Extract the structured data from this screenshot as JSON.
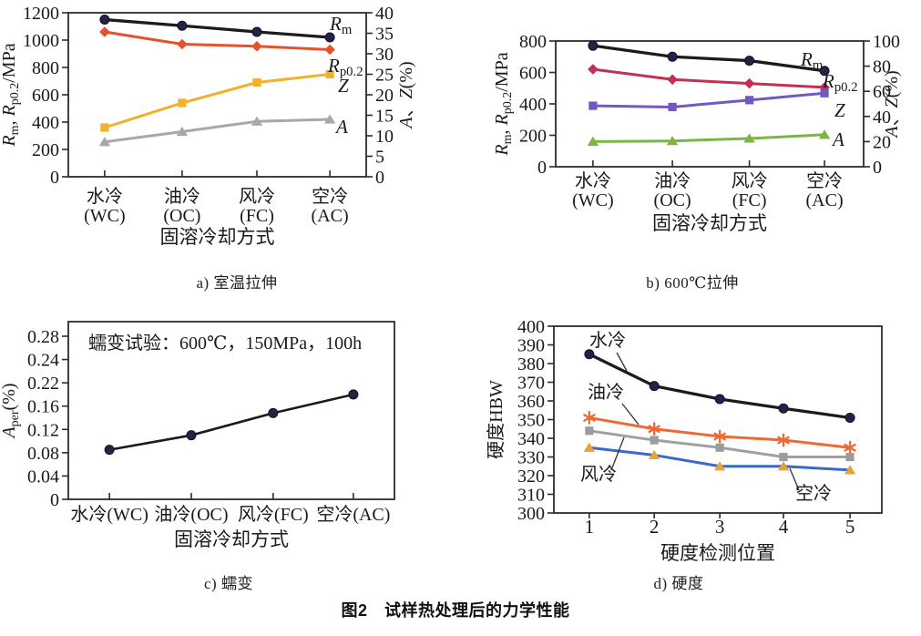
{
  "figure": {
    "main_caption": "图2　试样热处理后的力学性能",
    "captions": {
      "a": "a) 室温拉伸",
      "b": "b) 600℃拉伸",
      "c": "c) 蠕变",
      "d": "d) 硬度"
    }
  },
  "colors": {
    "axis": "#2b2b2b",
    "black_line": "#1b1b1b",
    "navy_marker": "#23234a",
    "orange_red": "#e6522b",
    "amber": "#f0b12b",
    "gray": "#a8a8a8",
    "crimson": "#c23052",
    "purple": "#7258c0",
    "green": "#7bb544",
    "orange": "#ee6a35",
    "blue": "#3a6ac8",
    "yellow_orange": "#e8a336"
  },
  "chart_data": [
    {
      "id": "a",
      "type": "line",
      "caption": "a) 室温拉伸",
      "x_categories": [
        [
          "水冷",
          "(WC)"
        ],
        [
          "油冷",
          "(OC)"
        ],
        [
          "风冷",
          "(FC)"
        ],
        [
          "空冷",
          "(AC)"
        ]
      ],
      "xlabel": "固溶冷却方式",
      "left_axis": {
        "min": 0,
        "max": 1200,
        "tick_step": 200,
        "tick_labels": [
          "0",
          "200",
          "400",
          "600",
          "800",
          "1000",
          "1200"
        ],
        "label": [
          {
            "t": "R",
            "i": 1
          },
          {
            "t": "m",
            "s": 1
          },
          {
            "t": ", "
          },
          {
            "t": "R",
            "i": 1
          },
          {
            "t": "p0.2",
            "s": 1
          },
          {
            "t": "/MPa"
          }
        ]
      },
      "right_axis": {
        "min": 0,
        "max": 40,
        "tick_step": 5,
        "tick_labels": [
          "0",
          "5",
          "10",
          "15",
          "20",
          "25",
          "30",
          "35",
          "40"
        ],
        "label": [
          {
            "t": "A",
            "i": 1
          },
          {
            "t": "、"
          },
          {
            "t": "Z",
            "i": 1
          },
          {
            "t": "(%)"
          }
        ]
      },
      "series": [
        {
          "key": "rm",
          "label": [
            {
              "t": "R",
              "i": 1
            },
            {
              "t": "m",
              "s": 1
            }
          ],
          "axis": "left",
          "color": "#1b1b1b",
          "marker": "circle",
          "marker_color": "#23234a",
          "values": [
            1150,
            1105,
            1060,
            1020
          ]
        },
        {
          "key": "rp02",
          "label": [
            {
              "t": "R",
              "i": 1
            },
            {
              "t": "p0.2",
              "s": 1
            }
          ],
          "axis": "left",
          "color": "#e6522b",
          "marker": "diamond",
          "marker_color": "#e6522b",
          "values": [
            1060,
            970,
            955,
            930
          ]
        },
        {
          "key": "z",
          "label": [
            {
              "t": "Z",
              "i": 1
            }
          ],
          "axis": "right",
          "color": "#f0b12b",
          "marker": "square",
          "marker_color": "#f0b12b",
          "values": [
            12,
            18,
            23,
            25
          ]
        },
        {
          "key": "a",
          "label": [
            {
              "t": "A",
              "i": 1
            }
          ],
          "axis": "right",
          "color": "#a8a8a8",
          "marker": "triangle",
          "marker_color": "#a8a8a8",
          "values": [
            8.5,
            11,
            13.5,
            14
          ]
        }
      ]
    },
    {
      "id": "b",
      "type": "line",
      "caption": "b) 600℃拉伸",
      "x_categories": [
        [
          "水冷",
          "(WC)"
        ],
        [
          "油冷",
          "(OC)"
        ],
        [
          "风冷",
          "(FC)"
        ],
        [
          "空冷",
          "(AC)"
        ]
      ],
      "xlabel": "固溶冷却方式",
      "left_axis": {
        "min": 0,
        "max": 800,
        "tick_step": 200,
        "tick_labels": [
          "0",
          "200",
          "400",
          "600",
          "800"
        ],
        "label": [
          {
            "t": "R",
            "i": 1
          },
          {
            "t": "m",
            "s": 1
          },
          {
            "t": ", "
          },
          {
            "t": "R",
            "i": 1
          },
          {
            "t": "p0.2",
            "s": 1
          },
          {
            "t": "/MPa"
          }
        ]
      },
      "right_axis": {
        "min": 0,
        "max": 100,
        "tick_step": 20,
        "tick_labels": [
          "0",
          "20",
          "40",
          "60",
          "80",
          "100"
        ],
        "label": [
          {
            "t": "A",
            "i": 1
          },
          {
            "t": "、"
          },
          {
            "t": "Z",
            "i": 1
          },
          {
            "t": "(%)"
          }
        ]
      },
      "series": [
        {
          "key": "rm",
          "label": [
            {
              "t": "R",
              "i": 1
            },
            {
              "t": "m",
              "s": 1
            }
          ],
          "axis": "left",
          "color": "#1b1b1b",
          "marker": "circle",
          "marker_color": "#23234a",
          "values": [
            770,
            700,
            675,
            610
          ]
        },
        {
          "key": "rp02",
          "label": [
            {
              "t": "R",
              "i": 1
            },
            {
              "t": "p0.2",
              "s": 1
            }
          ],
          "axis": "left",
          "color": "#c23052",
          "marker": "diamond",
          "marker_color": "#c23052",
          "values": [
            620,
            555,
            530,
            505
          ]
        },
        {
          "key": "z",
          "label": [
            {
              "t": "Z",
              "i": 1
            }
          ],
          "axis": "right",
          "color": "#7258c0",
          "marker": "square",
          "marker_color": "#7258c0",
          "values": [
            48.5,
            47.5,
            53,
            58.5
          ]
        },
        {
          "key": "a",
          "label": [
            {
              "t": "A",
              "i": 1
            }
          ],
          "axis": "right",
          "color": "#7bb544",
          "marker": "triangle",
          "marker_color": "#7bb544",
          "values": [
            20,
            20.5,
            22.5,
            25.5
          ]
        }
      ]
    },
    {
      "id": "c",
      "type": "line",
      "caption": "c) 蠕变",
      "annotation": "蠕变试验：600℃，150MPa，100h",
      "x_categories": [
        [
          "水冷(WC)"
        ],
        [
          "油冷(OC)"
        ],
        [
          "风冷(FC)"
        ],
        [
          "空冷(AC)"
        ]
      ],
      "xlabel": "固溶冷却方式",
      "left_axis": {
        "tick_values": [
          0,
          0.04,
          0.08,
          0.12,
          0.16,
          0.22,
          0.24,
          0.28
        ],
        "tick_labels": [
          "0",
          "0.04",
          "0.08",
          "0.12",
          "0.16",
          "0.22",
          "0.24",
          "0.28"
        ],
        "label": [
          {
            "t": "A",
            "i": 1
          },
          {
            "t": "per",
            "s": 1
          },
          {
            "t": "(%)"
          }
        ]
      },
      "series": [
        {
          "key": "aper",
          "axis": "left",
          "color": "#1b1b1b",
          "marker": "circle",
          "marker_color": "#23234a",
          "values": [
            0.085,
            0.11,
            0.148,
            0.19
          ]
        }
      ]
    },
    {
      "id": "d",
      "type": "line",
      "caption": "d) 硬度",
      "x_tick_labels": [
        "1",
        "2",
        "3",
        "4",
        "5"
      ],
      "xlabel": "硬度检测位置",
      "left_axis": {
        "min": 300,
        "max": 400,
        "tick_step": 10,
        "tick_labels": [
          "300",
          "310",
          "320",
          "330",
          "340",
          "350",
          "360",
          "370",
          "380",
          "390",
          "400"
        ],
        "label": [
          {
            "t": "硬度HBW"
          }
        ]
      },
      "series": [
        {
          "key": "water",
          "name": "水冷",
          "axis": "left",
          "color": "#1b1b1b",
          "marker": "circle",
          "marker_color": "#23234a",
          "values": [
            385,
            368,
            361,
            356,
            351
          ]
        },
        {
          "key": "oil",
          "name": "油冷",
          "axis": "left",
          "color": "#ee6a35",
          "marker": "asterisk",
          "marker_color": "#ee6a35",
          "values": [
            351,
            345,
            341,
            339,
            335
          ]
        },
        {
          "key": "wind",
          "name": "风冷",
          "axis": "left",
          "color": "#a0a0a0",
          "marker": "square",
          "marker_color": "#9c9c9c",
          "values": [
            344,
            339,
            335,
            330,
            330
          ]
        },
        {
          "key": "air",
          "name": "空冷",
          "axis": "left",
          "color": "#3a6ac8",
          "marker": "triangle",
          "marker_color": "#e8a336",
          "values": [
            335,
            331,
            325,
            325,
            323
          ]
        }
      ]
    }
  ]
}
